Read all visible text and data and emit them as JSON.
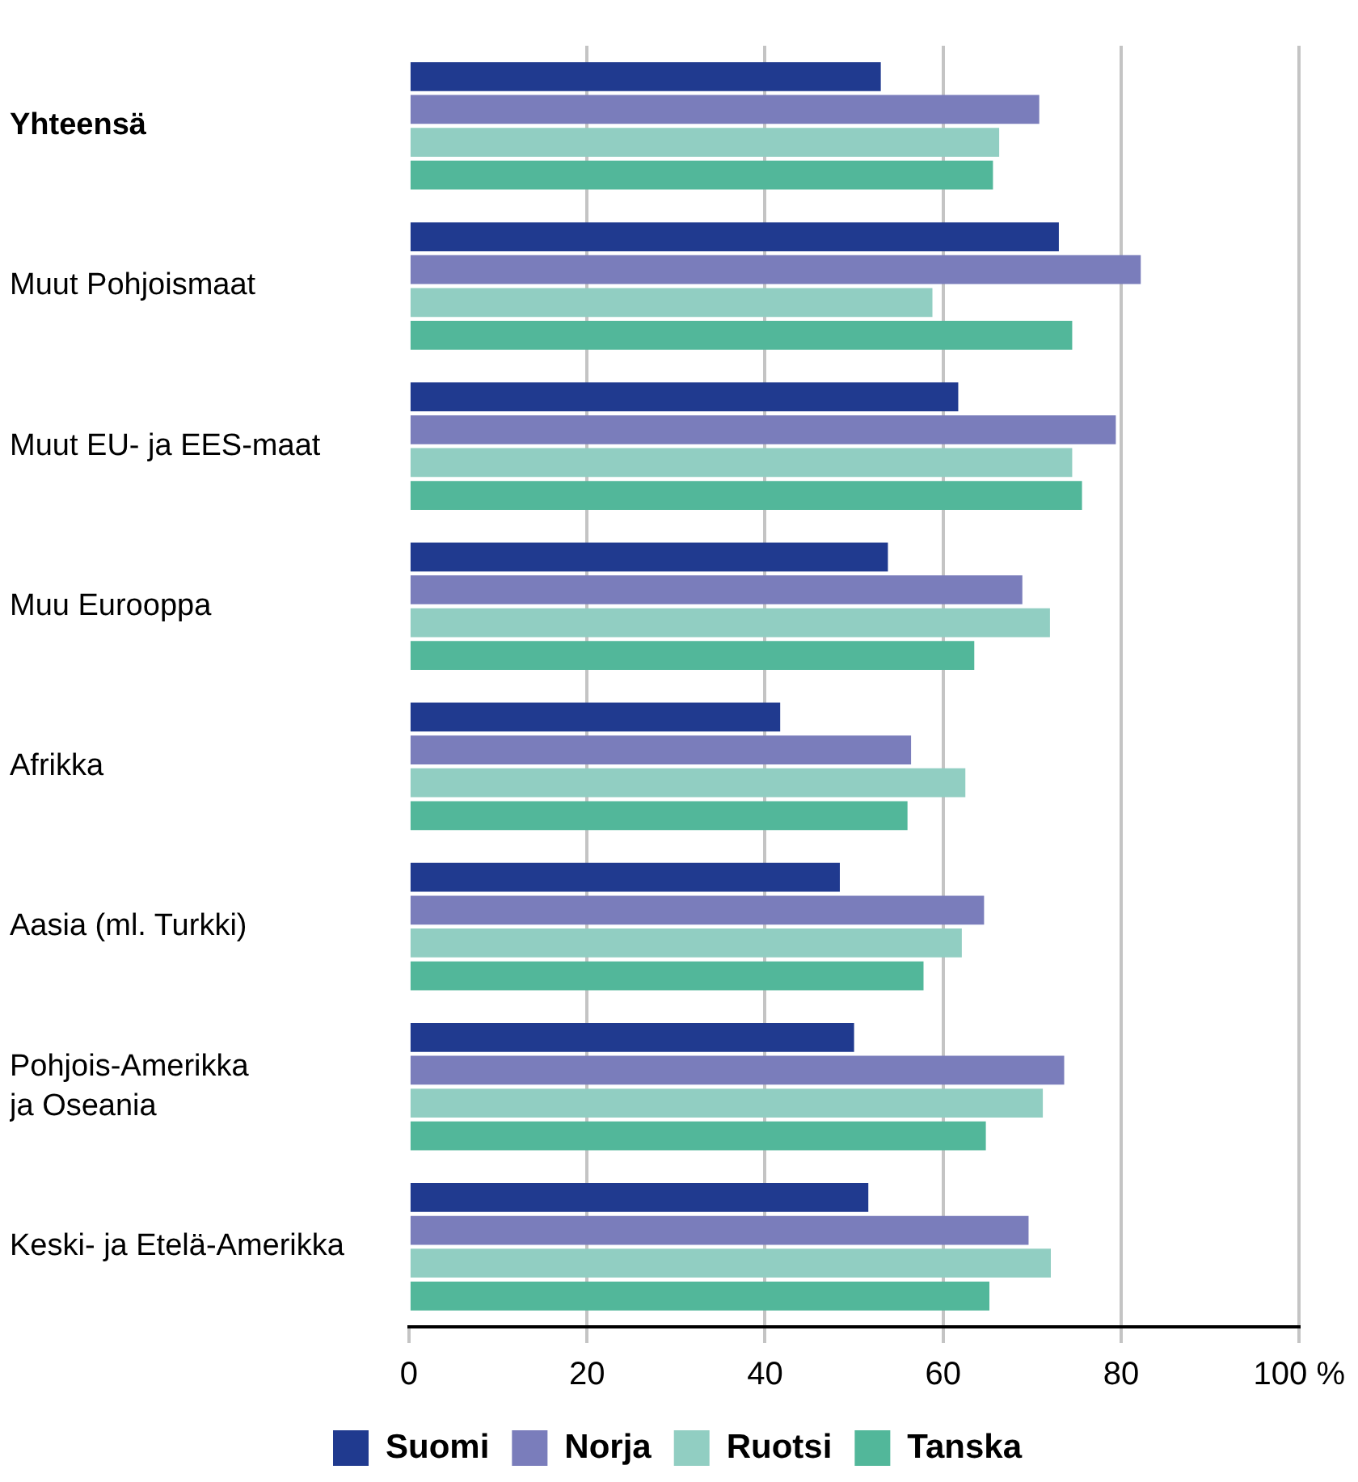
{
  "chart_data": {
    "type": "bar",
    "orientation": "horizontal",
    "categories": [
      "Yhteensä",
      "Muut Pohjoismaat",
      "Muut EU- ja EES-maat",
      "Muu Eurooppa",
      "Afrikka",
      "Aasia (ml. Turkki)",
      "Pohjois-Amerikka\nja Oseania",
      "Keski- ja Etelä-Amerikka"
    ],
    "series": [
      {
        "name": "Suomi",
        "color": "#203a8f",
        "values": [
          53.0,
          73.0,
          61.7,
          53.8,
          41.7,
          48.4,
          50.0,
          51.6
        ]
      },
      {
        "name": "Norja",
        "color": "#7a7dbb",
        "values": [
          70.8,
          82.2,
          79.4,
          68.9,
          56.4,
          64.6,
          73.6,
          69.6
        ]
      },
      {
        "name": "Ruotsi",
        "color": "#91cec2",
        "values": [
          66.3,
          58.8,
          74.5,
          72.0,
          62.5,
          62.1,
          71.2,
          72.1
        ]
      },
      {
        "name": "Tanska",
        "color": "#52b79a",
        "values": [
          65.6,
          74.5,
          75.6,
          63.5,
          56.0,
          57.8,
          64.8,
          65.2
        ]
      }
    ],
    "xlim": [
      0,
      100
    ],
    "xticks": [
      0,
      20,
      40,
      60,
      80,
      {
        "value": 100,
        "label": "100 %"
      }
    ],
    "grid": "x",
    "legend": "bottom"
  }
}
